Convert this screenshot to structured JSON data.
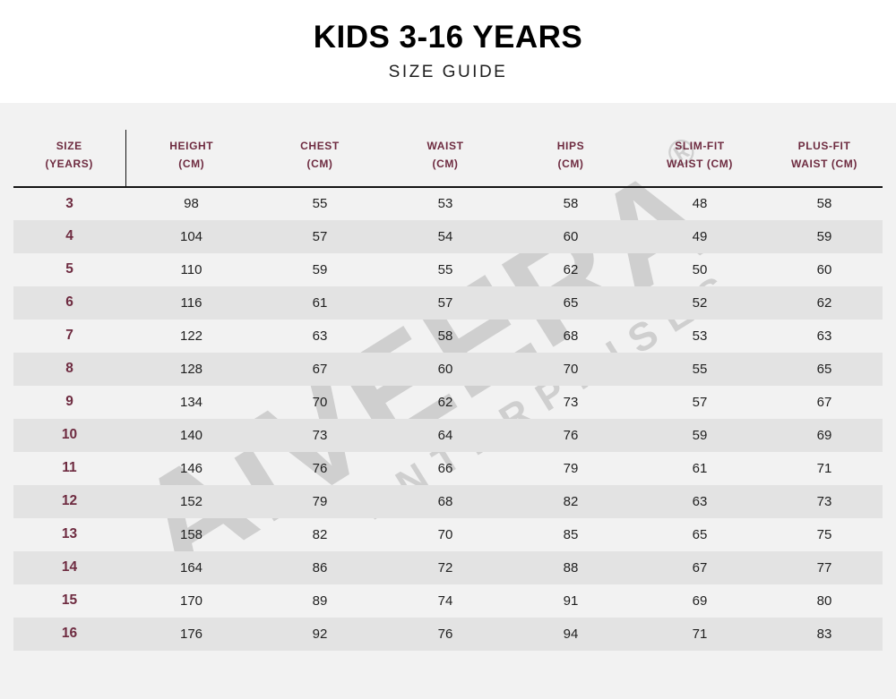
{
  "page": {
    "title": "KIDS 3-16 YEARS",
    "subtitle": "SIZE GUIDE"
  },
  "watermark": {
    "brand": "AiVEERA",
    "registered": "®",
    "subtext": "ENTERPRISES"
  },
  "chart_data": {
    "type": "table",
    "title": "KIDS 3-16 YEARS SIZE GUIDE",
    "columns": [
      {
        "line1": "SIZE",
        "line2": "(YEARS)"
      },
      {
        "line1": "HEIGHT",
        "line2": "(CM)"
      },
      {
        "line1": "CHEST",
        "line2": "(CM)"
      },
      {
        "line1": "WAIST",
        "line2": "(CM)"
      },
      {
        "line1": "HIPS",
        "line2": "(CM)"
      },
      {
        "line1": "SLIM-FIT",
        "line2": "WAIST (CM)"
      },
      {
        "line1": "PLUS-FIT",
        "line2": "WAIST (CM)"
      }
    ],
    "rows": [
      [
        "3",
        "98",
        "55",
        "53",
        "58",
        "48",
        "58"
      ],
      [
        "4",
        "104",
        "57",
        "54",
        "60",
        "49",
        "59"
      ],
      [
        "5",
        "110",
        "59",
        "55",
        "62",
        "50",
        "60"
      ],
      [
        "6",
        "116",
        "61",
        "57",
        "65",
        "52",
        "62"
      ],
      [
        "7",
        "122",
        "63",
        "58",
        "68",
        "53",
        "63"
      ],
      [
        "8",
        "128",
        "67",
        "60",
        "70",
        "55",
        "65"
      ],
      [
        "9",
        "134",
        "70",
        "62",
        "73",
        "57",
        "67"
      ],
      [
        "10",
        "140",
        "73",
        "64",
        "76",
        "59",
        "69"
      ],
      [
        "11",
        "146",
        "76",
        "66",
        "79",
        "61",
        "71"
      ],
      [
        "12",
        "152",
        "79",
        "68",
        "82",
        "63",
        "73"
      ],
      [
        "13",
        "158",
        "82",
        "70",
        "85",
        "65",
        "75"
      ],
      [
        "14",
        "164",
        "86",
        "72",
        "88",
        "67",
        "77"
      ],
      [
        "15",
        "170",
        "89",
        "74",
        "91",
        "69",
        "80"
      ],
      [
        "16",
        "176",
        "92",
        "76",
        "94",
        "71",
        "83"
      ]
    ]
  },
  "colors": {
    "accent_maroon": "#6e2b40",
    "row_alt": "#e3e3e3",
    "table_bg": "#f2f2f2",
    "header_rule": "#141414"
  }
}
